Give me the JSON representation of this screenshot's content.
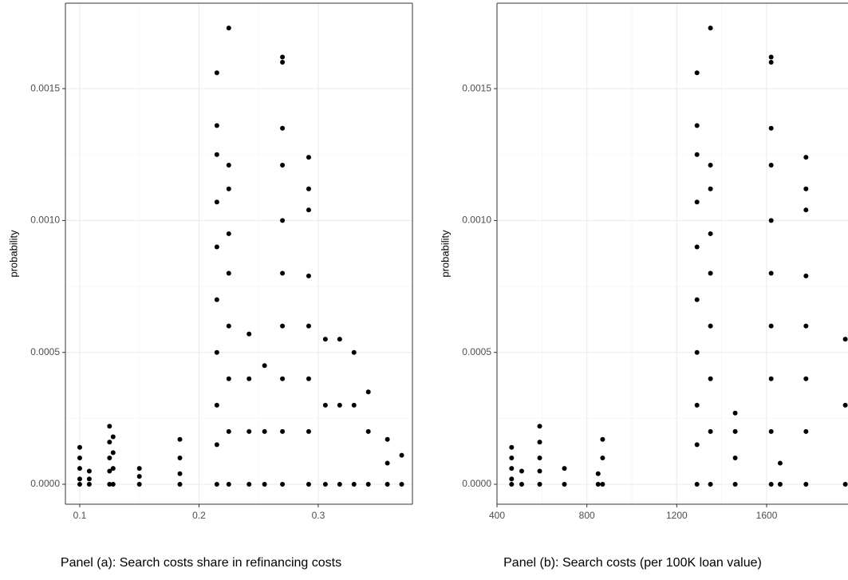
{
  "chart_data": [
    {
      "type": "scatter",
      "title": "Panel (a): Search costs share in refinancing costs",
      "ylabel": "probability",
      "color": "#000000",
      "grid": true,
      "xlim": [
        0.088,
        0.379
      ],
      "ylim": [
        -7.56e-05,
        0.001824
      ],
      "xticks": [
        0.1,
        0.2,
        0.3
      ],
      "yticks": [
        {
          "value": 0,
          "label": "0.0000"
        },
        {
          "value": 0.0005,
          "label": "0.0005"
        },
        {
          "value": 0.001,
          "label": "0.0010"
        },
        {
          "value": 0.0015,
          "label": "0.0015"
        }
      ],
      "x": [
        0.1,
        0.1,
        0.1,
        0.1,
        0.1,
        0.108,
        0.108,
        0.108,
        0.125,
        0.125,
        0.125,
        0.125,
        0.125,
        0.128,
        0.128,
        0.128,
        0.128,
        0.15,
        0.15,
        0.15,
        0.184,
        0.184,
        0.184,
        0.184,
        0.215,
        0.215,
        0.215,
        0.215,
        0.215,
        0.215,
        0.215,
        0.215,
        0.215,
        0.215,
        0.225,
        0.225,
        0.225,
        0.225,
        0.225,
        0.225,
        0.225,
        0.225,
        0.225,
        0.242,
        0.242,
        0.242,
        0.242,
        0.255,
        0.255,
        0.255,
        0.27,
        0.27,
        0.27,
        0.27,
        0.27,
        0.27,
        0.27,
        0.27,
        0.27,
        0.27,
        0.292,
        0.292,
        0.292,
        0.292,
        0.292,
        0.292,
        0.292,
        0.292,
        0.306,
        0.306,
        0.306,
        0.318,
        0.318,
        0.318,
        0.33,
        0.33,
        0.33,
        0.342,
        0.342,
        0.342,
        0.358,
        0.358,
        0.358,
        0.37,
        0.37
      ],
      "y": [
        0.00014,
        0.0001,
        6e-05,
        2e-05,
        0,
        5e-05,
        2e-05,
        0,
        0.00022,
        0.00016,
        0.0001,
        5e-05,
        0,
        0.00018,
        0.00012,
        6e-05,
        0,
        6e-05,
        3e-05,
        0,
        0.00017,
        0.0001,
        4e-05,
        0,
        0.00156,
        0.00136,
        0.00125,
        0.00107,
        0.0009,
        0.0007,
        0.0005,
        0.0003,
        0.00015,
        0,
        0.00173,
        0.00121,
        0.00112,
        0.00095,
        0.0008,
        0.0006,
        0.0004,
        0.0002,
        0,
        0.00057,
        0.0004,
        0.0002,
        0,
        0.00045,
        0.0002,
        0,
        0.00162,
        0.0016,
        0.00135,
        0.00121,
        0.001,
        0.0008,
        0.0006,
        0.0004,
        0.0002,
        0,
        0.00124,
        0.00112,
        0.00104,
        0.00079,
        0.0006,
        0.0004,
        0.0002,
        0,
        0.00055,
        0.0003,
        0,
        0.00055,
        0.0003,
        0,
        0.0005,
        0.0003,
        0,
        0.00035,
        0.0002,
        0,
        0.00017,
        8e-05,
        0,
        0.00011,
        0
      ]
    },
    {
      "type": "scatter",
      "title": "Panel (b): Search costs (per 100K loan value)",
      "ylabel": "probability",
      "color": "#000000",
      "grid": true,
      "xlim": [
        400,
        1962
      ],
      "ylim": [
        -7.56e-05,
        0.001824
      ],
      "xticks": [
        400,
        800,
        1200,
        1600
      ],
      "yticks": [
        {
          "value": 0,
          "label": "0.0000"
        },
        {
          "value": 0.0005,
          "label": "0.0005"
        },
        {
          "value": 0.001,
          "label": "0.0010"
        },
        {
          "value": 0.0015,
          "label": "0.0015"
        }
      ],
      "x": [
        465,
        465,
        465,
        465,
        465,
        510,
        510,
        590,
        590,
        590,
        590,
        590,
        700,
        700,
        850,
        850,
        870,
        870,
        870,
        1290,
        1290,
        1290,
        1290,
        1290,
        1290,
        1290,
        1290,
        1290,
        1290,
        1350,
        1350,
        1350,
        1350,
        1350,
        1350,
        1350,
        1350,
        1350,
        1460,
        1460,
        1460,
        1460,
        1620,
        1620,
        1620,
        1620,
        1620,
        1620,
        1620,
        1620,
        1620,
        1620,
        1660,
        1660,
        1775,
        1775,
        1775,
        1775,
        1775,
        1775,
        1775,
        1775,
        1950,
        1950,
        1950
      ],
      "y": [
        0.00014,
        0.0001,
        6e-05,
        2e-05,
        0,
        5e-05,
        0,
        0.00022,
        0.00016,
        0.0001,
        5e-05,
        0,
        6e-05,
        0,
        4e-05,
        0,
        0.00017,
        0.0001,
        0,
        0.00156,
        0.00136,
        0.00125,
        0.00107,
        0.0009,
        0.0007,
        0.0005,
        0.0003,
        0.00015,
        0,
        0.00173,
        0.00121,
        0.00112,
        0.00095,
        0.0008,
        0.0006,
        0.0004,
        0.0002,
        0,
        0.00027,
        0.0002,
        0.0001,
        0,
        0.00162,
        0.0016,
        0.00135,
        0.00121,
        0.001,
        0.0008,
        0.0006,
        0.0004,
        0.0002,
        0,
        8e-05,
        0,
        0.00124,
        0.00112,
        0.00104,
        0.00079,
        0.0006,
        0.0004,
        0.0002,
        0,
        0.00055,
        0.0003,
        0
      ]
    }
  ]
}
